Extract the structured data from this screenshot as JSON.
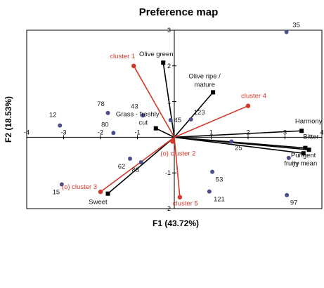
{
  "chart_data": {
    "type": "scatter",
    "title": "Preference map",
    "xlabel": "F1 (43.72%)",
    "ylabel": "F2 (18.53%)",
    "xlim": [
      -4,
      4
    ],
    "ylim": [
      -2,
      3
    ],
    "x_ticks": [
      -4,
      -3,
      -2,
      -1,
      0,
      1,
      2,
      3,
      4
    ],
    "y_ticks": [
      -2,
      -1,
      0,
      1,
      2,
      3
    ],
    "x_tick_labels": [
      "-4",
      "-3",
      "-2",
      "-1",
      "",
      "1",
      "2",
      "3",
      "4"
    ],
    "y_tick_labels": [
      "-2",
      "-1",
      "",
      "1",
      "2",
      "3"
    ],
    "grid": false,
    "colors": {
      "observations": "#4a4e8c",
      "variables": "#000000",
      "clusters": "#d2382a"
    },
    "observations": [
      {
        "label": "35",
        "x": 3.04,
        "y": 2.95
      },
      {
        "label": "78",
        "x": -1.8,
        "y": 0.68
      },
      {
        "label": "43",
        "x": -0.85,
        "y": 0.61
      },
      {
        "label": "45",
        "x": -0.1,
        "y": 0.48
      },
      {
        "label": "123",
        "x": 0.45,
        "y": 0.5
      },
      {
        "label": "12",
        "x": -3.1,
        "y": 0.33
      },
      {
        "label": "80",
        "x": -1.65,
        "y": 0.12
      },
      {
        "label": "25",
        "x": 1.55,
        "y": -0.12
      },
      {
        "label": "62",
        "x": -1.2,
        "y": -0.6
      },
      {
        "label": "88",
        "x": -0.9,
        "y": -0.7
      },
      {
        "label": "77",
        "x": 3.1,
        "y": -0.58
      },
      {
        "label": "53",
        "x": 1.03,
        "y": -0.97
      },
      {
        "label": "15",
        "x": -3.05,
        "y": -1.32
      },
      {
        "label": "121",
        "x": 0.95,
        "y": -1.52
      },
      {
        "label": "97",
        "x": 3.05,
        "y": -1.62
      }
    ],
    "variables": [
      {
        "label": "Olive green",
        "x": -0.3,
        "y": 2.09
      },
      {
        "label": "Olive ripe / mature",
        "x": 1.05,
        "y": 1.26
      },
      {
        "label": "Grass - freshly cut",
        "x": -0.5,
        "y": 0.25
      },
      {
        "label": "Harmony",
        "x": 3.45,
        "y": 0.18
      },
      {
        "label": "Bitter",
        "x": 3.55,
        "y": -0.3
      },
      {
        "label": "Pungent",
        "x": 3.65,
        "y": -0.35
      },
      {
        "label": "fruity mean",
        "x": 3.5,
        "y": -0.45
      },
      {
        "label": "Sweet",
        "x": -1.8,
        "y": -1.58
      }
    ],
    "clusters": [
      {
        "label": "cluster 1",
        "x": -1.1,
        "y": 2.0
      },
      {
        "label": "cluster 4",
        "x": 2.0,
        "y": 0.88
      },
      {
        "label": "(o) cluster 2",
        "x": -0.05,
        "y": -0.12
      },
      {
        "label": "(o) cluster 3",
        "x": -2.0,
        "y": -1.53
      },
      {
        "label": "cluster 5",
        "x": 0.15,
        "y": -1.68
      }
    ]
  }
}
